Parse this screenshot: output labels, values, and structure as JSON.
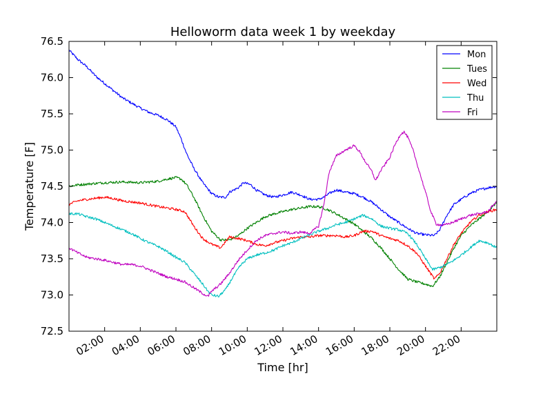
{
  "chart_data": {
    "type": "line",
    "title": "Helloworm data week 1 by weekday",
    "xlabel": "Time [hr]",
    "ylabel": "Temperature [F]",
    "xlim": [
      0,
      24
    ],
    "ylim": [
      72.5,
      76.5
    ],
    "grid": false,
    "legend_position": "top-right",
    "x_ticks": [
      2,
      4,
      6,
      8,
      10,
      12,
      14,
      16,
      18,
      20,
      22
    ],
    "x_tick_labels": [
      "02:00",
      "04:00",
      "06:00",
      "08:00",
      "10:00",
      "12:00",
      "14:00",
      "16:00",
      "18:00",
      "20:00",
      "22:00"
    ],
    "y_ticks": [
      72.5,
      73.0,
      73.5,
      74.0,
      74.5,
      75.0,
      75.5,
      76.0,
      76.5
    ],
    "y_tick_labels": [
      "72.5",
      "73.0",
      "73.5",
      "74.0",
      "74.5",
      "75.0",
      "75.5",
      "76.0",
      "76.5"
    ],
    "series": [
      {
        "name": "Mon",
        "color": "#0000ff",
        "points": [
          [
            0,
            76.38
          ],
          [
            0.5,
            76.25
          ],
          [
            1,
            76.15
          ],
          [
            1.5,
            76.02
          ],
          [
            2,
            75.92
          ],
          [
            2.5,
            75.82
          ],
          [
            3,
            75.72
          ],
          [
            3.5,
            75.65
          ],
          [
            4,
            75.58
          ],
          [
            4.5,
            75.52
          ],
          [
            5,
            75.48
          ],
          [
            5.5,
            75.42
          ],
          [
            6,
            75.32
          ],
          [
            6.3,
            75.15
          ],
          [
            6.6,
            74.95
          ],
          [
            7,
            74.75
          ],
          [
            7.5,
            74.55
          ],
          [
            8,
            74.4
          ],
          [
            8.4,
            74.35
          ],
          [
            8.8,
            74.35
          ],
          [
            9,
            74.42
          ],
          [
            9.5,
            74.48
          ],
          [
            9.8,
            74.55
          ],
          [
            10.2,
            74.52
          ],
          [
            10.5,
            74.45
          ],
          [
            11,
            74.38
          ],
          [
            11.5,
            74.35
          ],
          [
            12,
            74.38
          ],
          [
            12.5,
            74.42
          ],
          [
            13,
            74.38
          ],
          [
            13.5,
            74.32
          ],
          [
            14,
            74.32
          ],
          [
            14.3,
            74.35
          ],
          [
            14.6,
            74.4
          ],
          [
            15,
            74.45
          ],
          [
            15.5,
            74.42
          ],
          [
            16,
            74.4
          ],
          [
            16.5,
            74.35
          ],
          [
            17,
            74.28
          ],
          [
            17.5,
            74.18
          ],
          [
            18,
            74.08
          ],
          [
            18.5,
            74.0
          ],
          [
            19,
            73.92
          ],
          [
            19.5,
            73.85
          ],
          [
            20,
            73.83
          ],
          [
            20.5,
            73.82
          ],
          [
            20.8,
            73.9
          ],
          [
            21.2,
            74.1
          ],
          [
            21.6,
            74.25
          ],
          [
            22,
            74.32
          ],
          [
            22.5,
            74.4
          ],
          [
            23,
            74.45
          ],
          [
            23.5,
            74.48
          ],
          [
            24,
            74.5
          ]
        ]
      },
      {
        "name": "Tues",
        "color": "#008000",
        "points": [
          [
            0,
            74.5
          ],
          [
            0.5,
            74.52
          ],
          [
            1,
            74.53
          ],
          [
            2,
            74.55
          ],
          [
            3,
            74.56
          ],
          [
            4,
            74.55
          ],
          [
            5,
            74.57
          ],
          [
            5.5,
            74.6
          ],
          [
            6,
            74.62
          ],
          [
            6.3,
            74.6
          ],
          [
            6.6,
            74.52
          ],
          [
            7,
            74.35
          ],
          [
            7.5,
            74.1
          ],
          [
            8,
            73.88
          ],
          [
            8.5,
            73.76
          ],
          [
            9,
            73.76
          ],
          [
            9.5,
            73.82
          ],
          [
            10,
            73.92
          ],
          [
            10.5,
            74.0
          ],
          [
            11,
            74.08
          ],
          [
            11.5,
            74.12
          ],
          [
            12,
            74.15
          ],
          [
            12.5,
            74.18
          ],
          [
            13,
            74.2
          ],
          [
            13.5,
            74.22
          ],
          [
            14,
            74.22
          ],
          [
            14.5,
            74.18
          ],
          [
            15,
            74.12
          ],
          [
            15.5,
            74.05
          ],
          [
            16,
            73.98
          ],
          [
            16.5,
            73.88
          ],
          [
            17,
            73.78
          ],
          [
            17.5,
            73.65
          ],
          [
            18,
            73.5
          ],
          [
            18.5,
            73.35
          ],
          [
            19,
            73.22
          ],
          [
            19.5,
            73.18
          ],
          [
            20,
            73.15
          ],
          [
            20.4,
            73.12
          ],
          [
            20.8,
            73.25
          ],
          [
            21.2,
            73.45
          ],
          [
            21.6,
            73.65
          ],
          [
            22,
            73.82
          ],
          [
            22.5,
            73.95
          ],
          [
            23,
            74.05
          ],
          [
            23.5,
            74.15
          ],
          [
            24,
            74.28
          ]
        ]
      },
      {
        "name": "Wed",
        "color": "#ff0000",
        "points": [
          [
            0,
            74.25
          ],
          [
            0.5,
            74.3
          ],
          [
            1,
            74.32
          ],
          [
            2,
            74.35
          ],
          [
            2.5,
            74.33
          ],
          [
            3,
            74.3
          ],
          [
            4,
            74.27
          ],
          [
            5,
            74.22
          ],
          [
            6,
            74.18
          ],
          [
            6.5,
            74.15
          ],
          [
            7,
            73.95
          ],
          [
            7.5,
            73.78
          ],
          [
            8,
            73.7
          ],
          [
            8.5,
            73.65
          ],
          [
            9,
            73.8
          ],
          [
            9.5,
            73.78
          ],
          [
            10,
            73.75
          ],
          [
            10.5,
            73.7
          ],
          [
            11,
            73.68
          ],
          [
            11.5,
            73.72
          ],
          [
            12,
            73.75
          ],
          [
            12.5,
            73.78
          ],
          [
            13,
            73.8
          ],
          [
            13.5,
            73.8
          ],
          [
            14,
            73.82
          ],
          [
            14.5,
            73.82
          ],
          [
            15,
            73.82
          ],
          [
            15.5,
            73.8
          ],
          [
            16,
            73.82
          ],
          [
            16.5,
            73.88
          ],
          [
            17,
            73.88
          ],
          [
            17.5,
            73.82
          ],
          [
            18,
            73.78
          ],
          [
            18.5,
            73.75
          ],
          [
            19,
            73.68
          ],
          [
            19.5,
            73.58
          ],
          [
            20,
            73.4
          ],
          [
            20.5,
            73.22
          ],
          [
            20.8,
            73.3
          ],
          [
            21.2,
            73.5
          ],
          [
            21.6,
            73.7
          ],
          [
            22,
            73.85
          ],
          [
            22.5,
            74.0
          ],
          [
            23,
            74.1
          ],
          [
            23.5,
            74.15
          ],
          [
            24,
            74.18
          ]
        ]
      },
      {
        "name": "Thu",
        "color": "#00bfbf",
        "points": [
          [
            0,
            74.12
          ],
          [
            0.5,
            74.12
          ],
          [
            1,
            74.08
          ],
          [
            1.5,
            74.05
          ],
          [
            2,
            74.0
          ],
          [
            2.5,
            73.95
          ],
          [
            3,
            73.9
          ],
          [
            3.5,
            73.85
          ],
          [
            4,
            73.78
          ],
          [
            4.5,
            73.72
          ],
          [
            5,
            73.67
          ],
          [
            5.5,
            73.6
          ],
          [
            6,
            73.52
          ],
          [
            6.5,
            73.45
          ],
          [
            7,
            73.3
          ],
          [
            7.5,
            73.15
          ],
          [
            7.8,
            73.05
          ],
          [
            8,
            73.0
          ],
          [
            8.4,
            72.98
          ],
          [
            8.8,
            73.08
          ],
          [
            9.2,
            73.25
          ],
          [
            9.6,
            73.4
          ],
          [
            10,
            73.5
          ],
          [
            10.5,
            73.55
          ],
          [
            11,
            73.58
          ],
          [
            11.5,
            73.62
          ],
          [
            12,
            73.68
          ],
          [
            12.5,
            73.72
          ],
          [
            13,
            73.78
          ],
          [
            13.5,
            73.83
          ],
          [
            14,
            73.88
          ],
          [
            14.5,
            73.92
          ],
          [
            15,
            73.97
          ],
          [
            15.5,
            74.0
          ],
          [
            16,
            74.05
          ],
          [
            16.5,
            74.1
          ],
          [
            17,
            74.05
          ],
          [
            17.5,
            73.95
          ],
          [
            18,
            73.92
          ],
          [
            18.5,
            73.9
          ],
          [
            19,
            73.85
          ],
          [
            19.5,
            73.7
          ],
          [
            20,
            73.5
          ],
          [
            20.4,
            73.35
          ],
          [
            20.8,
            73.38
          ],
          [
            21.2,
            73.42
          ],
          [
            21.6,
            73.48
          ],
          [
            22,
            73.55
          ],
          [
            22.5,
            73.65
          ],
          [
            23,
            73.75
          ],
          [
            23.5,
            73.72
          ],
          [
            24,
            73.65
          ]
        ]
      },
      {
        "name": "Fri",
        "color": "#bf00bf",
        "points": [
          [
            0,
            73.65
          ],
          [
            0.5,
            73.58
          ],
          [
            1,
            73.52
          ],
          [
            1.5,
            73.5
          ],
          [
            2,
            73.48
          ],
          [
            2.5,
            73.45
          ],
          [
            3,
            73.42
          ],
          [
            3.5,
            73.42
          ],
          [
            4,
            73.4
          ],
          [
            4.5,
            73.35
          ],
          [
            5,
            73.3
          ],
          [
            5.5,
            73.25
          ],
          [
            6,
            73.22
          ],
          [
            6.5,
            73.18
          ],
          [
            7,
            73.1
          ],
          [
            7.5,
            73.02
          ],
          [
            7.8,
            72.98
          ],
          [
            8,
            73.05
          ],
          [
            8.5,
            73.15
          ],
          [
            9,
            73.3
          ],
          [
            9.5,
            73.48
          ],
          [
            10,
            73.62
          ],
          [
            10.5,
            73.75
          ],
          [
            11,
            73.82
          ],
          [
            11.5,
            73.85
          ],
          [
            12,
            73.87
          ],
          [
            12.5,
            73.85
          ],
          [
            13,
            73.87
          ],
          [
            13.5,
            73.85
          ],
          [
            14,
            73.95
          ],
          [
            14.3,
            74.25
          ],
          [
            14.6,
            74.7
          ],
          [
            15,
            74.92
          ],
          [
            15.5,
            75.0
          ],
          [
            16,
            75.06
          ],
          [
            16.3,
            74.98
          ],
          [
            16.6,
            74.85
          ],
          [
            17,
            74.7
          ],
          [
            17.2,
            74.58
          ],
          [
            17.5,
            74.72
          ],
          [
            18,
            74.9
          ],
          [
            18.3,
            75.08
          ],
          [
            18.6,
            75.22
          ],
          [
            18.8,
            75.25
          ],
          [
            19,
            75.18
          ],
          [
            19.3,
            75.0
          ],
          [
            19.6,
            74.75
          ],
          [
            20,
            74.42
          ],
          [
            20.3,
            74.15
          ],
          [
            20.6,
            73.98
          ],
          [
            21,
            73.96
          ],
          [
            21.5,
            74.0
          ],
          [
            22,
            74.05
          ],
          [
            22.5,
            74.1
          ],
          [
            23,
            74.12
          ],
          [
            23.5,
            74.15
          ],
          [
            24,
            74.3
          ]
        ]
      }
    ]
  }
}
